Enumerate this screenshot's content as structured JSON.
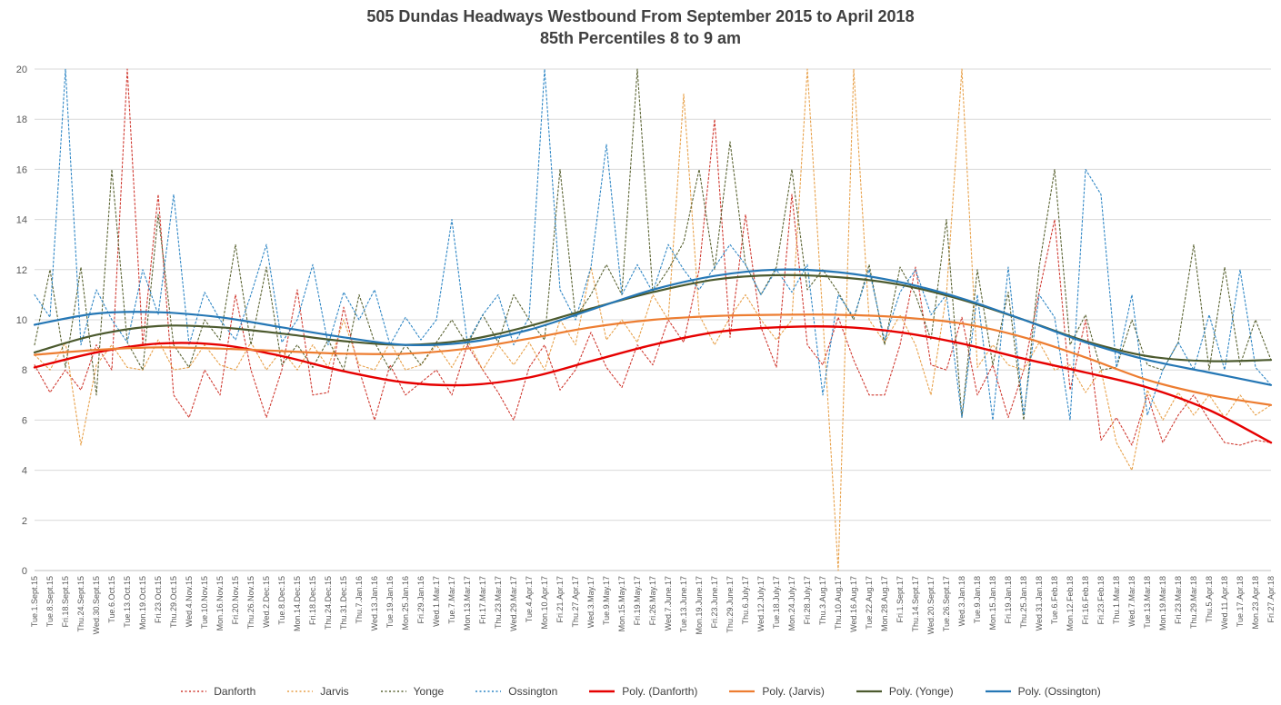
{
  "title": {
    "line1": "505 Dundas Headways Westbound From September 2015 to April 2018",
    "line2": "85th Percentiles 8 to 9 am"
  },
  "colors": {
    "grid": "#D9D9D9",
    "axis": "#BFBFBF",
    "tick_label": "#595959",
    "title_text": "#404040"
  },
  "chart_data": {
    "type": "line",
    "title": "505 Dundas Headways Westbound From September 2015 to April 2018",
    "subtitle": "85th Percentiles 8 to 9 am",
    "xlabel": "",
    "ylabel": "",
    "ylim": [
      0,
      20
    ],
    "yticks": [
      0,
      2,
      4,
      6,
      8,
      10,
      12,
      14,
      16,
      18,
      20
    ],
    "grid": true,
    "legend_position": "bottom",
    "categories": [
      "Tue.1.Sept.15",
      "Tue.8.Sept.15",
      "Fri.18.Sept.15",
      "Thu.24.Sept.15",
      "Wed.30.Sept.15",
      "Tue.6.Oct.15",
      "Tue.13.Oct.15",
      "Mon.19.Oct.15",
      "Fri.23.Oct.15",
      "Thu.29.Oct.15",
      "Wed.4.Nov.15",
      "Tue.10.Nov.15",
      "Mon.16.Nov.15",
      "Fri.20.Nov.15",
      "Thu.26.Nov.15",
      "Wed.2.Dec.15",
      "Tue.8.Dec.15",
      "Mon.14.Dec.15",
      "Fri.18.Dec.15",
      "Thu.24.Dec.15",
      "Thu.31.Dec.15",
      "Thu.7.Jan.16",
      "Wed.13.Jan.16",
      "Tue.19.Jan.16",
      "Mon.25.Jan.16",
      "Fri.29.Jan.16",
      "Wed.1.Mar.17",
      "Tue.7.Mar.17",
      "Mon.13.Mar.17",
      "Fri.17.Mar.17",
      "Thu.23.Mar.17",
      "Wed.29.Mar.17",
      "Tue.4.Apr.17",
      "Mon.10.Apr.17",
      "Fri.21.Apr.17",
      "Thu.27.Apr.17",
      "Wed.3.May.17",
      "Tue.9.May.17",
      "Mon.15.May.17",
      "Fri.19.May.17",
      "Fri.26.May.17",
      "Wed.7.June.17",
      "Tue.13.June.17",
      "Mon.19.June.17",
      "Fri.23.June.17",
      "Thu.29.June.17",
      "Thu.6.July.17",
      "Wed.12.July.17",
      "Tue.18.July.17",
      "Mon.24.July.17",
      "Fri.28.July.17",
      "Thu.3.Aug.17",
      "Thu.10.Aug.17",
      "Wed.16.Aug.17",
      "Tue.22.Aug.17",
      "Mon.28.Aug.17",
      "Fri.1.Sept.17",
      "Thu.14.Sept.17",
      "Wed.20.Sept.17",
      "Tue.26.Sept.17",
      "Wed.3.Jan.18",
      "Tue.9.Jan.18",
      "Mon.15.Jan.18",
      "Fri.19.Jan.18",
      "Thu.25.Jan.18",
      "Wed.31.Jan.18",
      "Tue.6.Feb.18",
      "Mon.12.Feb.18",
      "Fri.16.Feb.18",
      "Fri.23.Feb.18",
      "Thu.1.Mar.18",
      "Wed.7.Mar.18",
      "Tue.13.Mar.18",
      "Mon.19.Mar.18",
      "Fri.23.Mar.18",
      "Thu.29.Mar.18",
      "Thu.5.Apr.18",
      "Wed.11.Apr.18",
      "Tue.17.Apr.18",
      "Mon.23.Apr.18",
      "Fri.27.Apr.18"
    ],
    "series": [
      {
        "name": "Danforth",
        "style": "dotted",
        "color": "#D03A31",
        "width": 1.1,
        "values": [
          8.2,
          7.1,
          8.0,
          7.2,
          9.0,
          8.0,
          20,
          9.0,
          15.0,
          7.0,
          6.1,
          8.0,
          7.0,
          11.0,
          8.0,
          6.1,
          8.0,
          11.2,
          7.0,
          7.1,
          10.5,
          8.0,
          6.0,
          8.2,
          7.0,
          7.5,
          8.0,
          7.0,
          9.0,
          8.0,
          7.1,
          6.0,
          8.1,
          9.0,
          7.2,
          8.0,
          9.5,
          8.1,
          7.3,
          9.0,
          8.2,
          10.0,
          9.1,
          12.0,
          18.0,
          9.3,
          14.2,
          9.7,
          8.1,
          15.0,
          9.0,
          8.2,
          10.1,
          8.4,
          7.0,
          7.0,
          9.0,
          12.1,
          8.2,
          8.0,
          10.1,
          7.0,
          8.2,
          6.1,
          8.0,
          11.1,
          14.0,
          7.2,
          10.0,
          5.2,
          6.1,
          5.0,
          7.0,
          5.1,
          6.2,
          7.0,
          6.0,
          5.1,
          5.0,
          5.2,
          5.1
        ]
      },
      {
        "name": "Jarvis",
        "style": "dotted",
        "color": "#E8A14A",
        "width": 1.1,
        "values": [
          8.6,
          8.0,
          9.1,
          5.0,
          8.2,
          9.0,
          8.1,
          8.0,
          9.2,
          8.0,
          8.1,
          9.0,
          8.2,
          8.0,
          9.1,
          8.0,
          8.8,
          8.0,
          9.0,
          8.1,
          10.0,
          8.2,
          8.0,
          9.1,
          8.0,
          8.2,
          9.0,
          8.1,
          9.2,
          8.0,
          9.0,
          8.2,
          9.1,
          8.0,
          10.0,
          9.0,
          12.1,
          9.2,
          10.0,
          9.1,
          11.0,
          10.0,
          19.0,
          10.2,
          9.0,
          10.1,
          11.0,
          10.0,
          9.2,
          10.0,
          20.0,
          10.1,
          0.0,
          20.0,
          10.0,
          9.1,
          10.2,
          9.0,
          7.0,
          11.0,
          20.0,
          8.1,
          9.0,
          8.2,
          8.0,
          9.1,
          8.0,
          8.2,
          7.1,
          8.0,
          5.1,
          4.0,
          7.2,
          6.0,
          7.1,
          6.2,
          7.0,
          6.1,
          7.0,
          6.2,
          6.6
        ]
      },
      {
        "name": "Yonge",
        "style": "dotted",
        "color": "#5A6332",
        "width": 1.1,
        "values": [
          9.0,
          12.0,
          8.1,
          12.1,
          7.0,
          16.0,
          9.1,
          8.0,
          14.2,
          9.0,
          8.1,
          10.0,
          9.2,
          13.0,
          9.0,
          12.1,
          8.2,
          9.0,
          8.1,
          9.2,
          8.0,
          11.0,
          9.1,
          8.0,
          9.0,
          8.2,
          9.1,
          10.0,
          9.0,
          10.2,
          9.1,
          11.0,
          10.0,
          9.2,
          16.0,
          10.1,
          11.0,
          12.2,
          11.0,
          20.0,
          11.1,
          12.0,
          13.1,
          16.0,
          12.0,
          17.1,
          12.2,
          11.0,
          12.1,
          16.0,
          11.2,
          12.0,
          11.1,
          10.0,
          12.2,
          9.0,
          12.1,
          11.0,
          9.2,
          14.0,
          6.1,
          12.0,
          8.2,
          11.1,
          6.0,
          12.1,
          16.0,
          9.0,
          10.2,
          8.0,
          8.1,
          10.0,
          8.2,
          8.0,
          9.1,
          13.0,
          8.0,
          12.1,
          8.2,
          10.0,
          8.4
        ]
      },
      {
        "name": "Ossington",
        "style": "dotted",
        "color": "#2E86C5",
        "width": 1.1,
        "values": [
          11.0,
          10.1,
          20.0,
          9.0,
          11.2,
          10.0,
          9.1,
          12.0,
          10.2,
          15.0,
          9.0,
          11.1,
          10.0,
          9.2,
          11.0,
          13.0,
          9.1,
          10.0,
          12.2,
          9.0,
          11.1,
          10.0,
          11.2,
          9.0,
          10.1,
          9.2,
          10.0,
          14.0,
          9.1,
          10.2,
          11.0,
          9.0,
          10.1,
          20.0,
          11.2,
          10.0,
          12.1,
          17.0,
          11.0,
          12.2,
          11.1,
          13.0,
          12.0,
          11.2,
          12.1,
          13.0,
          12.2,
          11.0,
          12.0,
          11.1,
          12.2,
          7.0,
          11.0,
          10.1,
          12.0,
          9.2,
          11.1,
          12.0,
          10.2,
          11.0,
          6.1,
          11.0,
          6.0,
          12.1,
          6.2,
          11.0,
          10.1,
          6.0,
          16.0,
          15.0,
          8.1,
          11.0,
          6.2,
          8.0,
          9.1,
          8.0,
          10.2,
          8.0,
          12.0,
          8.1,
          7.4
        ]
      },
      {
        "name": "Poly. (Danforth)",
        "style": "solid",
        "color": "#E60000",
        "width": 2.4,
        "poly_points": [
          [
            0,
            8.1
          ],
          [
            0.05,
            8.7
          ],
          [
            0.1,
            9.05
          ],
          [
            0.15,
            9.0
          ],
          [
            0.2,
            8.55
          ],
          [
            0.25,
            7.95
          ],
          [
            0.3,
            7.5
          ],
          [
            0.35,
            7.4
          ],
          [
            0.4,
            7.7
          ],
          [
            0.45,
            8.35
          ],
          [
            0.5,
            9.0
          ],
          [
            0.55,
            9.5
          ],
          [
            0.6,
            9.7
          ],
          [
            0.65,
            9.72
          ],
          [
            0.7,
            9.5
          ],
          [
            0.75,
            9.05
          ],
          [
            0.8,
            8.45
          ],
          [
            0.85,
            7.9
          ],
          [
            0.9,
            7.3
          ],
          [
            0.95,
            6.4
          ],
          [
            1,
            5.1
          ]
        ]
      },
      {
        "name": "Poly. (Jarvis)",
        "style": "solid",
        "color": "#ED7D31",
        "width": 2.2,
        "poly_points": [
          [
            0,
            8.6
          ],
          [
            0.05,
            8.8
          ],
          [
            0.1,
            8.9
          ],
          [
            0.15,
            8.85
          ],
          [
            0.2,
            8.75
          ],
          [
            0.25,
            8.65
          ],
          [
            0.3,
            8.65
          ],
          [
            0.35,
            8.85
          ],
          [
            0.4,
            9.25
          ],
          [
            0.45,
            9.7
          ],
          [
            0.5,
            10.0
          ],
          [
            0.55,
            10.15
          ],
          [
            0.6,
            10.2
          ],
          [
            0.65,
            10.2
          ],
          [
            0.7,
            10.1
          ],
          [
            0.75,
            9.85
          ],
          [
            0.8,
            9.3
          ],
          [
            0.85,
            8.5
          ],
          [
            0.9,
            7.6
          ],
          [
            0.95,
            7.0
          ],
          [
            1,
            6.6
          ]
        ]
      },
      {
        "name": "Poly. (Yonge)",
        "style": "solid",
        "color": "#4C5A2E",
        "width": 2.2,
        "poly_points": [
          [
            0,
            8.7
          ],
          [
            0.05,
            9.4
          ],
          [
            0.1,
            9.75
          ],
          [
            0.15,
            9.7
          ],
          [
            0.2,
            9.45
          ],
          [
            0.25,
            9.15
          ],
          [
            0.3,
            9.0
          ],
          [
            0.35,
            9.2
          ],
          [
            0.4,
            9.75
          ],
          [
            0.45,
            10.45
          ],
          [
            0.5,
            11.1
          ],
          [
            0.55,
            11.6
          ],
          [
            0.6,
            11.78
          ],
          [
            0.65,
            11.7
          ],
          [
            0.7,
            11.4
          ],
          [
            0.75,
            10.8
          ],
          [
            0.8,
            10.0
          ],
          [
            0.85,
            9.15
          ],
          [
            0.9,
            8.55
          ],
          [
            0.95,
            8.35
          ],
          [
            1,
            8.4
          ]
        ]
      },
      {
        "name": "Poly. (Ossington)",
        "style": "solid",
        "color": "#2577B5",
        "width": 2.2,
        "poly_points": [
          [
            0,
            9.8
          ],
          [
            0.05,
            10.25
          ],
          [
            0.1,
            10.3
          ],
          [
            0.15,
            10.1
          ],
          [
            0.2,
            9.7
          ],
          [
            0.25,
            9.3
          ],
          [
            0.3,
            9.0
          ],
          [
            0.35,
            9.1
          ],
          [
            0.4,
            9.6
          ],
          [
            0.45,
            10.4
          ],
          [
            0.5,
            11.2
          ],
          [
            0.55,
            11.75
          ],
          [
            0.6,
            12.0
          ],
          [
            0.65,
            11.9
          ],
          [
            0.7,
            11.5
          ],
          [
            0.75,
            10.85
          ],
          [
            0.8,
            10.0
          ],
          [
            0.85,
            9.1
          ],
          [
            0.9,
            8.4
          ],
          [
            0.95,
            7.9
          ],
          [
            1,
            7.4
          ]
        ]
      }
    ]
  }
}
